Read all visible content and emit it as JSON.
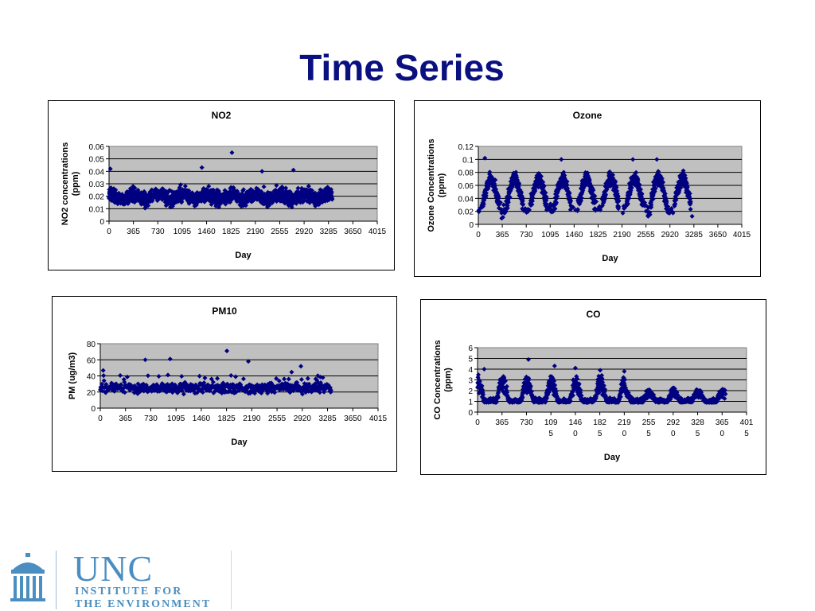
{
  "slide": {
    "title": "Time Series"
  },
  "logo": {
    "name": "UNC",
    "line1": "INSTITUTE FOR",
    "line2": "THE ENVIRONMENT"
  },
  "colors": {
    "marker": "#000080",
    "plot_bg": "#c0c0c0",
    "title": "#0a1080"
  },
  "chart_data": [
    {
      "id": "no2",
      "type": "scatter",
      "title": "NO2",
      "xlabel": "Day",
      "ylabel": "NO2 concentrations (ppm)",
      "xlim": [
        0,
        4015
      ],
      "ylim": [
        0,
        0.06
      ],
      "xticks": [
        "0",
        "365",
        "730",
        "1095",
        "1460",
        "1825",
        "2190",
        "2555",
        "2920",
        "3285",
        "3650",
        "4015"
      ],
      "yticks": [
        "0",
        "0.01",
        "0.02",
        "0.03",
        "0.04",
        "0.05",
        "0.06"
      ],
      "grid": true,
      "legend": "none",
      "series": [
        {
          "x_range": [
            0,
            3340
          ],
          "pattern": "noisy, baseline ~0.015-0.02 ppm, peaks to ~0.04",
          "outliers": [
            [
              1840,
              0.055
            ],
            [
              20,
              0.042
            ],
            [
              1390,
              0.043
            ],
            [
              2290,
              0.04
            ],
            [
              2760,
              0.041
            ]
          ]
        }
      ]
    },
    {
      "id": "ozone",
      "type": "scatter",
      "title": "Ozone",
      "xlabel": "Day",
      "ylabel": "Ozone Concentrations (ppm)",
      "xlim": [
        0,
        4015
      ],
      "ylim": [
        0,
        0.12
      ],
      "xticks": [
        "0",
        "365",
        "730",
        "1095",
        "1460",
        "1825",
        "2190",
        "2555",
        "2920",
        "3285",
        "3650",
        "4015"
      ],
      "yticks": [
        "0",
        "0.02",
        "0.04",
        "0.06",
        "0.08",
        "0.1",
        "0.12"
      ],
      "grid": true,
      "legend": "none",
      "series": [
        {
          "x_range": [
            0,
            3260
          ],
          "pattern": "seasonal, summer peaks ~0.08-0.1 ppm, winter lows ~0.02",
          "outliers": [
            [
              100,
              0.102
            ],
            [
              1265,
              0.1
            ],
            [
              2355,
              0.1
            ],
            [
              2720,
              0.1
            ]
          ]
        }
      ]
    },
    {
      "id": "pm10",
      "type": "scatter",
      "title": "PM10",
      "xlabel": "Day",
      "ylabel": "PM (ug/m3)",
      "xlim": [
        0,
        4015
      ],
      "ylim": [
        0,
        80
      ],
      "xticks": [
        "0",
        "365",
        "730",
        "1095",
        "1460",
        "1825",
        "2190",
        "2555",
        "2920",
        "3285",
        "3650",
        "4015"
      ],
      "yticks": [
        "0",
        "20",
        "40",
        "60",
        "80"
      ],
      "grid": true,
      "legend": "none",
      "series": [
        {
          "x_range": [
            0,
            3340
          ],
          "pattern": "sparse samples, ~10-45 ug/m3",
          "outliers": [
            [
              1830,
              71
            ],
            [
              650,
              60
            ],
            [
              1010,
              61
            ],
            [
              2140,
              58
            ],
            [
              2900,
              52
            ]
          ]
        }
      ]
    },
    {
      "id": "co",
      "type": "scatter",
      "title": "CO",
      "xlabel": "Day",
      "ylabel": "CO Concentrations (ppm)",
      "xlim": [
        0,
        4015
      ],
      "ylim": [
        0,
        6
      ],
      "xticks": [
        "0",
        "365",
        "730",
        "109\n5",
        "146\n0",
        "182\n5",
        "219\n0",
        "255\n5",
        "292\n0",
        "328\n5",
        "365\n0",
        "401\n5"
      ],
      "yticks": [
        "0",
        "1",
        "2",
        "3",
        "4",
        "5",
        "6"
      ],
      "grid": true,
      "legend": "none",
      "series": [
        {
          "x_range": [
            0,
            3700
          ],
          "pattern": "seasonal, winter peaks ~3-5 ppm, baseline ~0.5-1",
          "outliers": [
            [
              760,
              4.9
            ],
            [
              1150,
              4.3
            ],
            [
              1460,
              4.1
            ],
            [
              1830,
              3.9
            ],
            [
              2190,
              3.8
            ],
            [
              100,
              4.0
            ]
          ]
        }
      ]
    }
  ]
}
